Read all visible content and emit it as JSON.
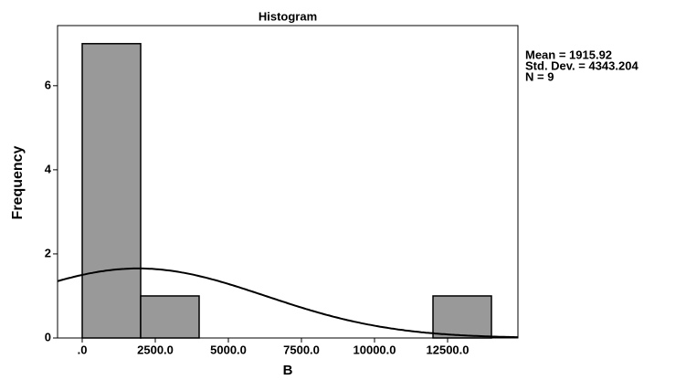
{
  "chart_data": {
    "type": "histogram",
    "title": "Histogram",
    "x_label": "B",
    "y_label": "Frequency",
    "bins": [
      0,
      2000,
      4000,
      6000,
      8000,
      10000,
      12000,
      14000
    ],
    "values": [
      7,
      1,
      0,
      0,
      0,
      0,
      1
    ],
    "color": "#999999",
    "xlim": [
      -844,
      14906
    ],
    "xticks": [
      {
        "value": 0,
        "label": ".0"
      },
      {
        "value": 2500,
        "label": "2500.0"
      },
      {
        "value": 5000,
        "label": "5000.0"
      },
      {
        "value": 7500,
        "label": "7500.0"
      },
      {
        "value": 10000,
        "label": "10000.0"
      },
      {
        "value": 12500,
        "label": "12500.0"
      }
    ],
    "ylim": [
      0,
      7.43
    ],
    "yticks": [
      0,
      2,
      4,
      6
    ],
    "stats": [
      {
        "label": "Mean = 1915.92",
        "value": 1915.92
      },
      {
        "label": "Std. Dev. = 4343.204",
        "value": 4343.204
      },
      {
        "label": "N = 9",
        "value": 9
      }
    ],
    "normal_curve": true
  }
}
